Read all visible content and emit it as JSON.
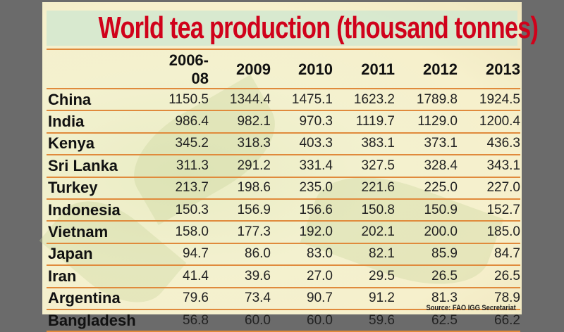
{
  "chart_data": {
    "type": "table",
    "title": "World tea production (thousand tonnes)",
    "columns": [
      "2006-08",
      "2009",
      "2010",
      "2011",
      "2012",
      "2013"
    ],
    "rows": [
      {
        "country": "China",
        "values": [
          "1150.5",
          "1344.4",
          "1475.1",
          "1623.2",
          "1789.8",
          "1924.5"
        ]
      },
      {
        "country": "India",
        "values": [
          "986.4",
          "982.1",
          "970.3",
          "1119.7",
          "1129.0",
          "1200.4"
        ]
      },
      {
        "country": "Kenya",
        "values": [
          "345.2",
          "318.3",
          "403.3",
          "383.1",
          "373.1",
          "436.3"
        ]
      },
      {
        "country": "Sri Lanka",
        "values": [
          "311.3",
          "291.2",
          "331.4",
          "327.5",
          "328.4",
          "343.1"
        ]
      },
      {
        "country": "Turkey",
        "values": [
          "213.7",
          "198.6",
          "235.0",
          "221.6",
          "225.0",
          "227.0"
        ]
      },
      {
        "country": "Indonesia",
        "values": [
          "150.3",
          "156.9",
          "156.6",
          "150.8",
          "150.9",
          "152.7"
        ]
      },
      {
        "country": "Vietnam",
        "values": [
          "158.0",
          "177.3",
          "192.0",
          "202.1",
          "200.0",
          "185.0"
        ]
      },
      {
        "country": "Japan",
        "values": [
          "94.7",
          "86.0",
          "83.0",
          "82.1",
          "85.9",
          "84.7"
        ]
      },
      {
        "country": "Iran",
        "values": [
          "41.4",
          "39.6",
          "27.0",
          "29.5",
          "26.5",
          "26.5"
        ]
      },
      {
        "country": "Argentina",
        "values": [
          "79.6",
          "73.4",
          "90.7",
          "91.2",
          "81.3",
          "78.9"
        ]
      },
      {
        "country": "Bangladesh",
        "values": [
          "56.8",
          "60.0",
          "60.0",
          "59.6",
          "62.5",
          "66.2"
        ]
      }
    ],
    "source": "Source: FAO IGG Secretariat",
    "colors": {
      "title": "#d0021b",
      "rules": "#e08a3c",
      "title_band": "#d6e8cf"
    }
  }
}
